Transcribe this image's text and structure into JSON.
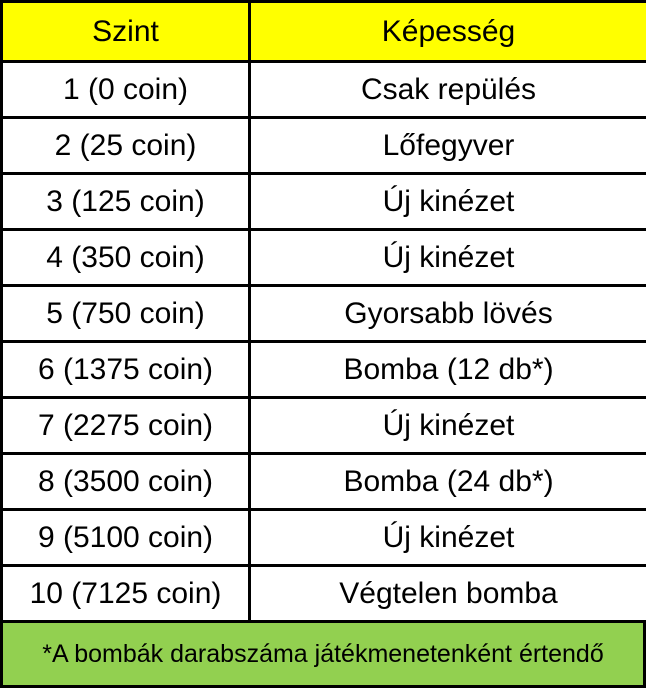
{
  "colors": {
    "header_bg": "#ffff00",
    "footer_bg": "#92d050",
    "cell_bg": "#ffffff",
    "border": "#000000"
  },
  "table": {
    "headers": [
      "Szint",
      "Képesség"
    ],
    "rows": [
      [
        "1 (0 coin)",
        "Csak repülés"
      ],
      [
        "2 (25 coin)",
        "Lőfegyver"
      ],
      [
        "3 (125 coin)",
        "Új kinézet"
      ],
      [
        "4 (350 coin)",
        "Új kinézet"
      ],
      [
        "5 (750 coin)",
        "Gyorsabb lövés"
      ],
      [
        "6 (1375 coin)",
        "Bomba (12 db*)"
      ],
      [
        "7 (2275 coin)",
        "Új kinézet"
      ],
      [
        "8 (3500 coin)",
        "Bomba (24 db*)"
      ],
      [
        "9 (5100 coin)",
        "Új kinézet"
      ],
      [
        "10 (7125 coin)",
        "Végtelen bomba"
      ]
    ]
  },
  "footnote": "*A bombák darabszáma játékmenetenként értendő"
}
